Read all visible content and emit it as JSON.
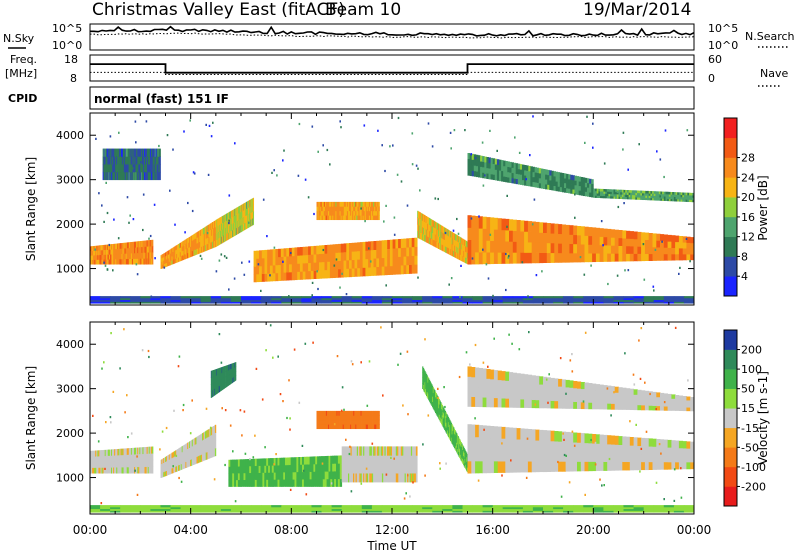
{
  "header": {
    "title": "Christmas Valley East (fitACF)",
    "beam": "Beam 10",
    "date": "19/Mar/2014",
    "mode": "normal (fast) 151 IF"
  },
  "left_labels": {
    "nsky": "N.Sky",
    "freq_line1": "Freq.",
    "freq_line2": "[MHz]",
    "cpid": "CPID"
  },
  "right_labels": {
    "nsearch": "N.Search",
    "nave": "Nave"
  },
  "axis_ticks": {
    "noise_left": [
      "10^5",
      "10^0"
    ],
    "noise_right": [
      "10^5",
      "10^0"
    ],
    "freq_left": [
      "18",
      "8"
    ],
    "freq_right": [
      "60",
      "0"
    ]
  },
  "chart_data": [
    {
      "type": "line",
      "name": "noise-panel",
      "x": [
        "00:00",
        "04:00",
        "08:00",
        "12:00",
        "16:00",
        "20:00",
        "00:00"
      ],
      "ylabel": "N.Sky",
      "ylabel_right": "N.Search",
      "y_ticks": [
        "10^0",
        "10^5"
      ],
      "series": [
        {
          "name": "N.Sky",
          "values": [
            3.6,
            3.8,
            3.3,
            3.1,
            2.9,
            3.0,
            3.1
          ]
        },
        {
          "name": "N.Search",
          "values": [
            3.0,
            3.2,
            2.7,
            2.5,
            2.4,
            2.5,
            2.5
          ]
        }
      ]
    },
    {
      "type": "line",
      "name": "frequency-panel",
      "ylabel": "Freq. [MHz]",
      "ylabel_right": "Nave",
      "ylim": [
        8,
        18
      ],
      "ylim_right": [
        0,
        60
      ],
      "series": [
        {
          "name": "Freq.",
          "steps": [
            [
              0.0,
              14.5
            ],
            [
              3.0,
              11.2
            ],
            [
              15.0,
              14.5
            ],
            [
              24.0,
              14.5
            ]
          ]
        },
        {
          "name": "Nave",
          "steps": [
            [
              0.0,
              20
            ],
            [
              3.0,
              15
            ],
            [
              15.0,
              20
            ],
            [
              24.0,
              20
            ]
          ]
        }
      ]
    },
    {
      "type": "heatmap",
      "name": "power-panel",
      "xlabel": "",
      "ylabel": "Slant Range [km]",
      "xlim": [
        0,
        24
      ],
      "ylim": [
        180,
        4500
      ],
      "y_ticks": [
        1000,
        2000,
        3000,
        4000
      ],
      "colorbar": {
        "label": "Power [dB]",
        "ticks": [
          4,
          8,
          12,
          16,
          20,
          24,
          28
        ],
        "range": [
          0,
          32
        ]
      },
      "bands": [
        {
          "t": [
            0.0,
            2.5
          ],
          "r0": [
            1100,
            1100
          ],
          "r1": [
            1500,
            1650
          ],
          "value": 26
        },
        {
          "t": [
            2.8,
            5.0
          ],
          "r0": [
            1000,
            1500
          ],
          "r1": [
            1300,
            2100
          ],
          "value": 24
        },
        {
          "t": [
            5.0,
            6.5
          ],
          "r0": [
            1500,
            2000
          ],
          "r1": [
            2100,
            2600
          ],
          "value": 20
        },
        {
          "t": [
            6.5,
            13.0
          ],
          "r0": [
            700,
            900
          ],
          "r1": [
            1400,
            1700
          ],
          "value": 25
        },
        {
          "t": [
            9.0,
            11.5
          ],
          "r0": [
            2100,
            2100
          ],
          "r1": [
            2500,
            2500
          ],
          "value": 24
        },
        {
          "t": [
            13.0,
            15.0
          ],
          "r0": [
            1700,
            1100
          ],
          "r1": [
            2300,
            1600
          ],
          "value": 22
        },
        {
          "t": [
            15.0,
            24.0
          ],
          "r0": [
            1100,
            1200
          ],
          "r1": [
            2200,
            1700
          ],
          "value": 26
        },
        {
          "t": [
            15.0,
            20.0
          ],
          "r0": [
            3100,
            2600
          ],
          "r1": [
            3600,
            3000
          ],
          "value": 12
        },
        {
          "t": [
            20.0,
            24.0
          ],
          "r0": [
            2600,
            2500
          ],
          "r1": [
            2800,
            2700
          ],
          "value": 14
        },
        {
          "t": [
            0.5,
            2.8
          ],
          "r0": [
            3000,
            3000
          ],
          "r1": [
            3700,
            3700
          ],
          "value": 8
        },
        {
          "t": [
            0.0,
            24.0
          ],
          "r0": [
            220,
            220
          ],
          "r1": [
            380,
            380
          ],
          "value": 6
        }
      ]
    },
    {
      "type": "heatmap",
      "name": "velocity-panel",
      "xlabel": "Time UT",
      "ylabel": "Slant Range [km]",
      "x_ticks": [
        "00:00",
        "04:00",
        "08:00",
        "12:00",
        "16:00",
        "20:00",
        "00:00"
      ],
      "xlim": [
        0,
        24
      ],
      "ylim": [
        180,
        4500
      ],
      "y_ticks": [
        1000,
        2000,
        3000,
        4000
      ],
      "colorbar": {
        "label": "Velocity [m s-1]",
        "ticks": [
          200,
          100,
          50,
          15,
          -15,
          -50,
          -100,
          -200
        ],
        "range": [
          -250,
          250
        ]
      },
      "bands": [
        {
          "t": [
            0.0,
            2.5
          ],
          "r0": [
            1100,
            1100
          ],
          "r1": [
            1600,
            1700
          ],
          "value": 0
        },
        {
          "t": [
            2.8,
            5.0
          ],
          "r0": [
            1000,
            1500
          ],
          "r1": [
            1400,
            2200
          ],
          "value": 0
        },
        {
          "t": [
            5.5,
            10.0
          ],
          "r0": [
            800,
            800
          ],
          "r1": [
            1400,
            1500
          ],
          "value": 60
        },
        {
          "t": [
            10.0,
            13.0
          ],
          "r0": [
            900,
            900
          ],
          "r1": [
            1700,
            1700
          ],
          "value": 0
        },
        {
          "t": [
            9.0,
            11.5
          ],
          "r0": [
            2100,
            2100
          ],
          "r1": [
            2500,
            2500
          ],
          "value": -80
        },
        {
          "t": [
            4.8,
            5.8
          ],
          "r0": [
            2800,
            3200
          ],
          "r1": [
            3400,
            3600
          ],
          "value": 180
        },
        {
          "t": [
            13.2,
            15.0
          ],
          "r0": [
            3000,
            1100
          ],
          "r1": [
            3500,
            1500
          ],
          "value": 60
        },
        {
          "t": [
            15.0,
            24.0
          ],
          "r0": [
            1100,
            1200
          ],
          "r1": [
            2200,
            1800
          ],
          "value": 0
        },
        {
          "t": [
            15.0,
            24.0
          ],
          "r0": [
            2600,
            2500
          ],
          "r1": [
            3500,
            2800
          ],
          "value": 0
        },
        {
          "t": [
            0.0,
            24.0
          ],
          "r0": [
            220,
            220
          ],
          "r1": [
            380,
            380
          ],
          "value": 40
        }
      ]
    }
  ]
}
